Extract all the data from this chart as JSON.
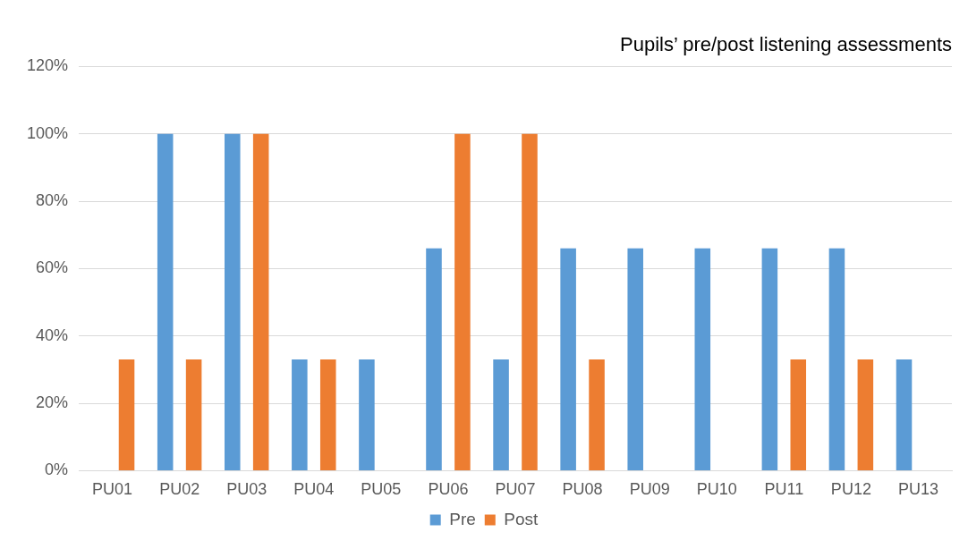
{
  "chart_data": {
    "type": "bar",
    "title": "Pupils’ pre/post listening assessments",
    "categories": [
      "PU01",
      "PU02",
      "PU03",
      "PU04",
      "PU05",
      "PU06",
      "PU07",
      "PU08",
      "PU09",
      "PU10",
      "PU11",
      "PU12",
      "PU13"
    ],
    "series": [
      {
        "name": "Pre",
        "color": "#5b9bd5",
        "values": [
          0,
          100,
          100,
          33,
          33,
          66,
          33,
          66,
          66,
          66,
          66,
          66,
          33
        ]
      },
      {
        "name": "Post",
        "color": "#ed7d31",
        "values": [
          33,
          33,
          100,
          33,
          0,
          100,
          100,
          33,
          0,
          0,
          33,
          33,
          0
        ]
      }
    ],
    "ylim": [
      0,
      120
    ],
    "yticks": [
      {
        "value": 0,
        "label": "0%"
      },
      {
        "value": 20,
        "label": "20%"
      },
      {
        "value": 40,
        "label": "40%"
      },
      {
        "value": 60,
        "label": "60%"
      },
      {
        "value": 80,
        "label": "80%"
      },
      {
        "value": 100,
        "label": "100%"
      },
      {
        "value": 120,
        "label": "120%"
      }
    ],
    "grid": "y",
    "legend": "bottom"
  }
}
